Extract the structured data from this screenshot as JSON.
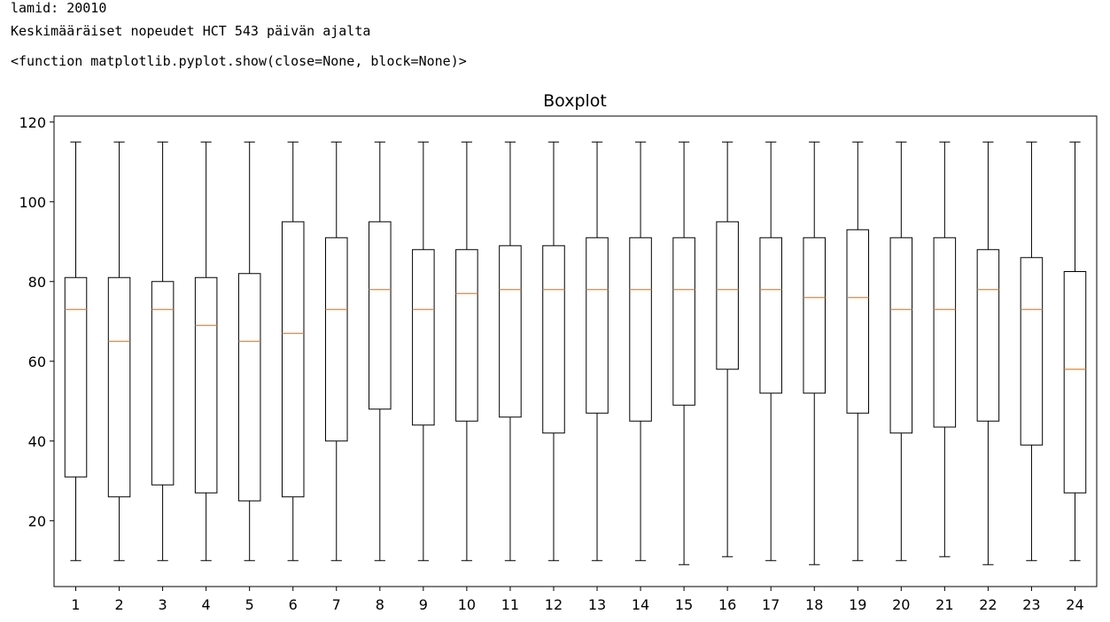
{
  "output": {
    "line1": "lamid: 20010",
    "line2": "Keskimääräiset nopeudet HCT 543 päivän ajalta",
    "line3": "<function matplotlib.pyplot.show(close=None, block=None)>"
  },
  "chart_data": {
    "type": "boxplot",
    "title": "Boxplot",
    "xlabel": "",
    "ylabel": "",
    "ylim": [
      3.5,
      121.5
    ],
    "yticks": [
      20,
      40,
      60,
      80,
      100,
      120
    ],
    "grid": false,
    "colors": {
      "box": "#000000",
      "median": "#ff7f0e"
    },
    "categories": [
      "1",
      "2",
      "3",
      "4",
      "5",
      "6",
      "7",
      "8",
      "9",
      "10",
      "11",
      "12",
      "13",
      "14",
      "15",
      "16",
      "17",
      "18",
      "19",
      "20",
      "21",
      "22",
      "23",
      "24"
    ],
    "boxes": [
      {
        "whislo": 10,
        "q1": 31,
        "med": 73,
        "q3": 81,
        "whishi": 115
      },
      {
        "whislo": 10,
        "q1": 26,
        "med": 65,
        "q3": 81,
        "whishi": 115
      },
      {
        "whislo": 10,
        "q1": 29,
        "med": 73,
        "q3": 80,
        "whishi": 115
      },
      {
        "whislo": 10,
        "q1": 27,
        "med": 69,
        "q3": 81,
        "whishi": 115
      },
      {
        "whislo": 10,
        "q1": 25,
        "med": 65,
        "q3": 82,
        "whishi": 115
      },
      {
        "whislo": 10,
        "q1": 26,
        "med": 67,
        "q3": 95,
        "whishi": 115
      },
      {
        "whislo": 10,
        "q1": 40,
        "med": 73,
        "q3": 91,
        "whishi": 115
      },
      {
        "whislo": 10,
        "q1": 48,
        "med": 78,
        "q3": 95,
        "whishi": 115
      },
      {
        "whislo": 10,
        "q1": 44,
        "med": 73,
        "q3": 88,
        "whishi": 115
      },
      {
        "whislo": 10,
        "q1": 45,
        "med": 77,
        "q3": 88,
        "whishi": 115
      },
      {
        "whislo": 10,
        "q1": 46,
        "med": 78,
        "q3": 89,
        "whishi": 115
      },
      {
        "whislo": 10,
        "q1": 42,
        "med": 78,
        "q3": 89,
        "whishi": 115
      },
      {
        "whislo": 10,
        "q1": 47,
        "med": 78,
        "q3": 91,
        "whishi": 115
      },
      {
        "whislo": 10,
        "q1": 45,
        "med": 78,
        "q3": 91,
        "whishi": 115
      },
      {
        "whislo": 9,
        "q1": 49,
        "med": 78,
        "q3": 91,
        "whishi": 115
      },
      {
        "whislo": 11,
        "q1": 58,
        "med": 78,
        "q3": 95,
        "whishi": 115
      },
      {
        "whislo": 10,
        "q1": 52,
        "med": 78,
        "q3": 91,
        "whishi": 115
      },
      {
        "whislo": 9,
        "q1": 52,
        "med": 76,
        "q3": 91,
        "whishi": 115
      },
      {
        "whislo": 10,
        "q1": 47,
        "med": 76,
        "q3": 93,
        "whishi": 115
      },
      {
        "whislo": 10,
        "q1": 42,
        "med": 73,
        "q3": 91,
        "whishi": 115
      },
      {
        "whislo": 11,
        "q1": 43.5,
        "med": 73,
        "q3": 91,
        "whishi": 115
      },
      {
        "whislo": 9,
        "q1": 45,
        "med": 78,
        "q3": 88,
        "whishi": 115
      },
      {
        "whislo": 10,
        "q1": 39,
        "med": 73,
        "q3": 86,
        "whishi": 115
      },
      {
        "whislo": 10,
        "q1": 27,
        "med": 58,
        "q3": 82.5,
        "whishi": 115
      }
    ]
  }
}
